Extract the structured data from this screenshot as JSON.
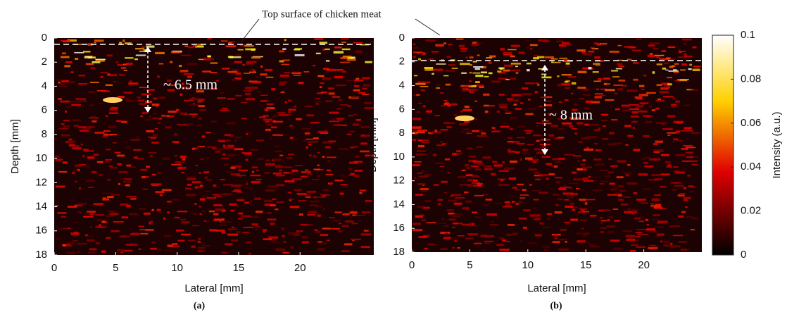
{
  "annotation_top": "Top surface of chicken meat",
  "chart_data": [
    {
      "type": "heatmap",
      "panel_label": "(a)",
      "xlabel": "Lateral [mm]",
      "ylabel": "Depth [mm]",
      "xlim": [
        0,
        26
      ],
      "ylim": [
        0,
        18
      ],
      "xticks": [
        0,
        5,
        10,
        15,
        20
      ],
      "yticks": [
        0,
        2,
        4,
        6,
        8,
        10,
        12,
        14,
        16,
        18
      ],
      "annotation": "~ 6.5 mm"
    },
    {
      "type": "heatmap",
      "panel_label": "(b)",
      "xlabel": "Lateral [mm]",
      "ylabel": "Depth [mm]",
      "xlim": [
        0,
        25
      ],
      "ylim": [
        0,
        18
      ],
      "xticks": [
        0,
        5,
        10,
        15,
        20
      ],
      "yticks": [
        0,
        2,
        4,
        6,
        8,
        10,
        12,
        14,
        16,
        18
      ],
      "annotation": "~ 8 mm"
    }
  ],
  "colorbar": {
    "label": "Intensity (a.u.)",
    "lim": [
      0,
      0.1
    ],
    "ticks": [
      0,
      0.02,
      0.04,
      0.06,
      0.08,
      0.1
    ]
  }
}
